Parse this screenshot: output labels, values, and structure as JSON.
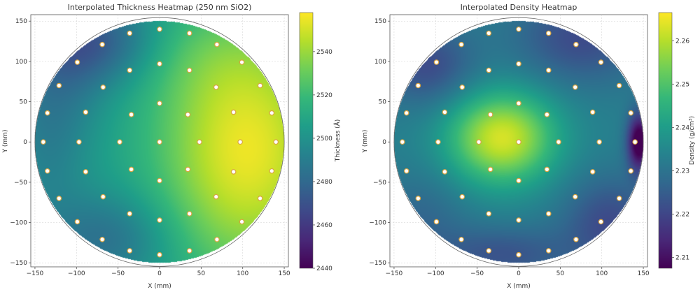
{
  "chart_data": [
    {
      "type": "heatmap",
      "title": "Interpolated Thickness Heatmap (250 nm SiO2)",
      "xlabel": "X (mm)",
      "ylabel": "Y (mm)",
      "xlim": [
        -155,
        155
      ],
      "ylim": [
        -155,
        158
      ],
      "xticks": [
        -150,
        -100,
        -50,
        0,
        50,
        100,
        150
      ],
      "yticks": [
        -150,
        -100,
        -50,
        0,
        50,
        100,
        150
      ],
      "wafer_radius": 150,
      "grid": true,
      "colormap": "viridis",
      "colorbar": {
        "label": "Thickness (Å)",
        "min": 2440,
        "max": 2558,
        "ticks": [
          2440,
          2460,
          2480,
          2500,
          2520,
          2540
        ]
      },
      "field_model": {
        "base": 2505,
        "terms": [
          {
            "x": 105,
            "y": -10,
            "sx": 75,
            "sy": 110,
            "amp": 50
          },
          {
            "x": 20,
            "y": 110,
            "sx": 80,
            "sy": 45,
            "amp": 8
          },
          {
            "x": -80,
            "y": 125,
            "sx": 55,
            "sy": 40,
            "amp": -35
          },
          {
            "x": -125,
            "y": 60,
            "sx": 40,
            "sy": 60,
            "amp": -15
          },
          {
            "x": -65,
            "y": -120,
            "sx": 55,
            "sy": 40,
            "amp": -22
          },
          {
            "x": -135,
            "y": -30,
            "sx": 30,
            "sy": 60,
            "amp": -8
          }
        ]
      },
      "measurement_points": [
        [
          0,
          0
        ],
        [
          0,
          48
        ],
        [
          0,
          -48
        ],
        [
          48,
          0
        ],
        [
          -48,
          0
        ],
        [
          0,
          97
        ],
        [
          0,
          -97
        ],
        [
          97,
          0
        ],
        [
          -97,
          0
        ],
        [
          34,
          34
        ],
        [
          -34,
          34
        ],
        [
          34,
          -34
        ],
        [
          -34,
          -34
        ],
        [
          0,
          140
        ],
        [
          0,
          -140
        ],
        [
          140,
          0
        ],
        [
          -140,
          0
        ],
        [
          36,
          135
        ],
        [
          -36,
          135
        ],
        [
          36,
          -135
        ],
        [
          -36,
          -135
        ],
        [
          69,
          121
        ],
        [
          -69,
          121
        ],
        [
          69,
          -121
        ],
        [
          -69,
          -121
        ],
        [
          99,
          99
        ],
        [
          -99,
          99
        ],
        [
          99,
          -99
        ],
        [
          -99,
          -99
        ],
        [
          121,
          70
        ],
        [
          -121,
          70
        ],
        [
          121,
          -70
        ],
        [
          -121,
          -70
        ],
        [
          135,
          36
        ],
        [
          -135,
          36
        ],
        [
          135,
          -36
        ],
        [
          -135,
          -36
        ],
        [
          36,
          89
        ],
        [
          -36,
          89
        ],
        [
          36,
          -89
        ],
        [
          -36,
          -89
        ],
        [
          68,
          68
        ],
        [
          -68,
          68
        ],
        [
          68,
          -68
        ],
        [
          -68,
          -68
        ],
        [
          89,
          37
        ],
        [
          -89,
          37
        ],
        [
          89,
          -37
        ],
        [
          -89,
          -37
        ]
      ]
    },
    {
      "type": "heatmap",
      "title": "Interpolated Density Heatmap",
      "xlabel": "X (mm)",
      "ylabel": "Y (mm)",
      "xlim": [
        -155,
        155
      ],
      "ylim": [
        -155,
        158
      ],
      "xticks": [
        -150,
        -100,
        -50,
        0,
        50,
        100,
        150
      ],
      "yticks": [
        -150,
        -100,
        -50,
        0,
        50,
        100,
        150
      ],
      "wafer_radius": 150,
      "grid": true,
      "colormap": "viridis",
      "colorbar": {
        "label": "Density (g/cm³)",
        "min": 2.2075,
        "max": 2.2665,
        "ticks": [
          2.21,
          2.22,
          2.23,
          2.24,
          2.25,
          2.26
        ]
      },
      "field_model": {
        "base": 2.233,
        "terms": [
          {
            "x": -20,
            "y": 5,
            "sx": 45,
            "sy": 40,
            "amp": 0.03
          },
          {
            "x": 75,
            "y": 130,
            "sx": 55,
            "sy": 40,
            "amp": -0.012
          },
          {
            "x": -110,
            "y": 95,
            "sx": 40,
            "sy": 35,
            "amp": -0.012
          },
          {
            "x": -20,
            "y": -140,
            "sx": 60,
            "sy": 25,
            "amp": -0.01
          },
          {
            "x": 145,
            "y": 0,
            "sx": 10,
            "sy": 25,
            "amp": -0.03
          },
          {
            "x": 110,
            "y": -100,
            "sx": 40,
            "sy": 40,
            "amp": -0.012
          },
          {
            "x": -120,
            "y": -95,
            "sx": 40,
            "sy": 40,
            "amp": -0.006
          }
        ]
      },
      "measurement_points": [
        [
          0,
          0
        ],
        [
          0,
          48
        ],
        [
          0,
          -48
        ],
        [
          48,
          0
        ],
        [
          -48,
          0
        ],
        [
          0,
          97
        ],
        [
          0,
          -97
        ],
        [
          97,
          0
        ],
        [
          -97,
          0
        ],
        [
          34,
          34
        ],
        [
          -34,
          34
        ],
        [
          34,
          -34
        ],
        [
          -34,
          -34
        ],
        [
          0,
          140
        ],
        [
          0,
          -140
        ],
        [
          140,
          0
        ],
        [
          -140,
          0
        ],
        [
          36,
          135
        ],
        [
          -36,
          135
        ],
        [
          36,
          -135
        ],
        [
          -36,
          -135
        ],
        [
          69,
          121
        ],
        [
          -69,
          121
        ],
        [
          69,
          -121
        ],
        [
          -69,
          -121
        ],
        [
          99,
          99
        ],
        [
          -99,
          99
        ],
        [
          99,
          -99
        ],
        [
          -99,
          -99
        ],
        [
          121,
          70
        ],
        [
          -121,
          70
        ],
        [
          121,
          -70
        ],
        [
          -121,
          -70
        ],
        [
          135,
          36
        ],
        [
          -135,
          36
        ],
        [
          135,
          -36
        ],
        [
          -135,
          -36
        ],
        [
          36,
          89
        ],
        [
          -36,
          89
        ],
        [
          36,
          -89
        ],
        [
          -36,
          -89
        ],
        [
          68,
          68
        ],
        [
          -68,
          68
        ],
        [
          68,
          -68
        ],
        [
          -68,
          -68
        ],
        [
          89,
          37
        ],
        [
          -89,
          37
        ],
        [
          89,
          -37
        ],
        [
          -89,
          -37
        ]
      ]
    }
  ]
}
